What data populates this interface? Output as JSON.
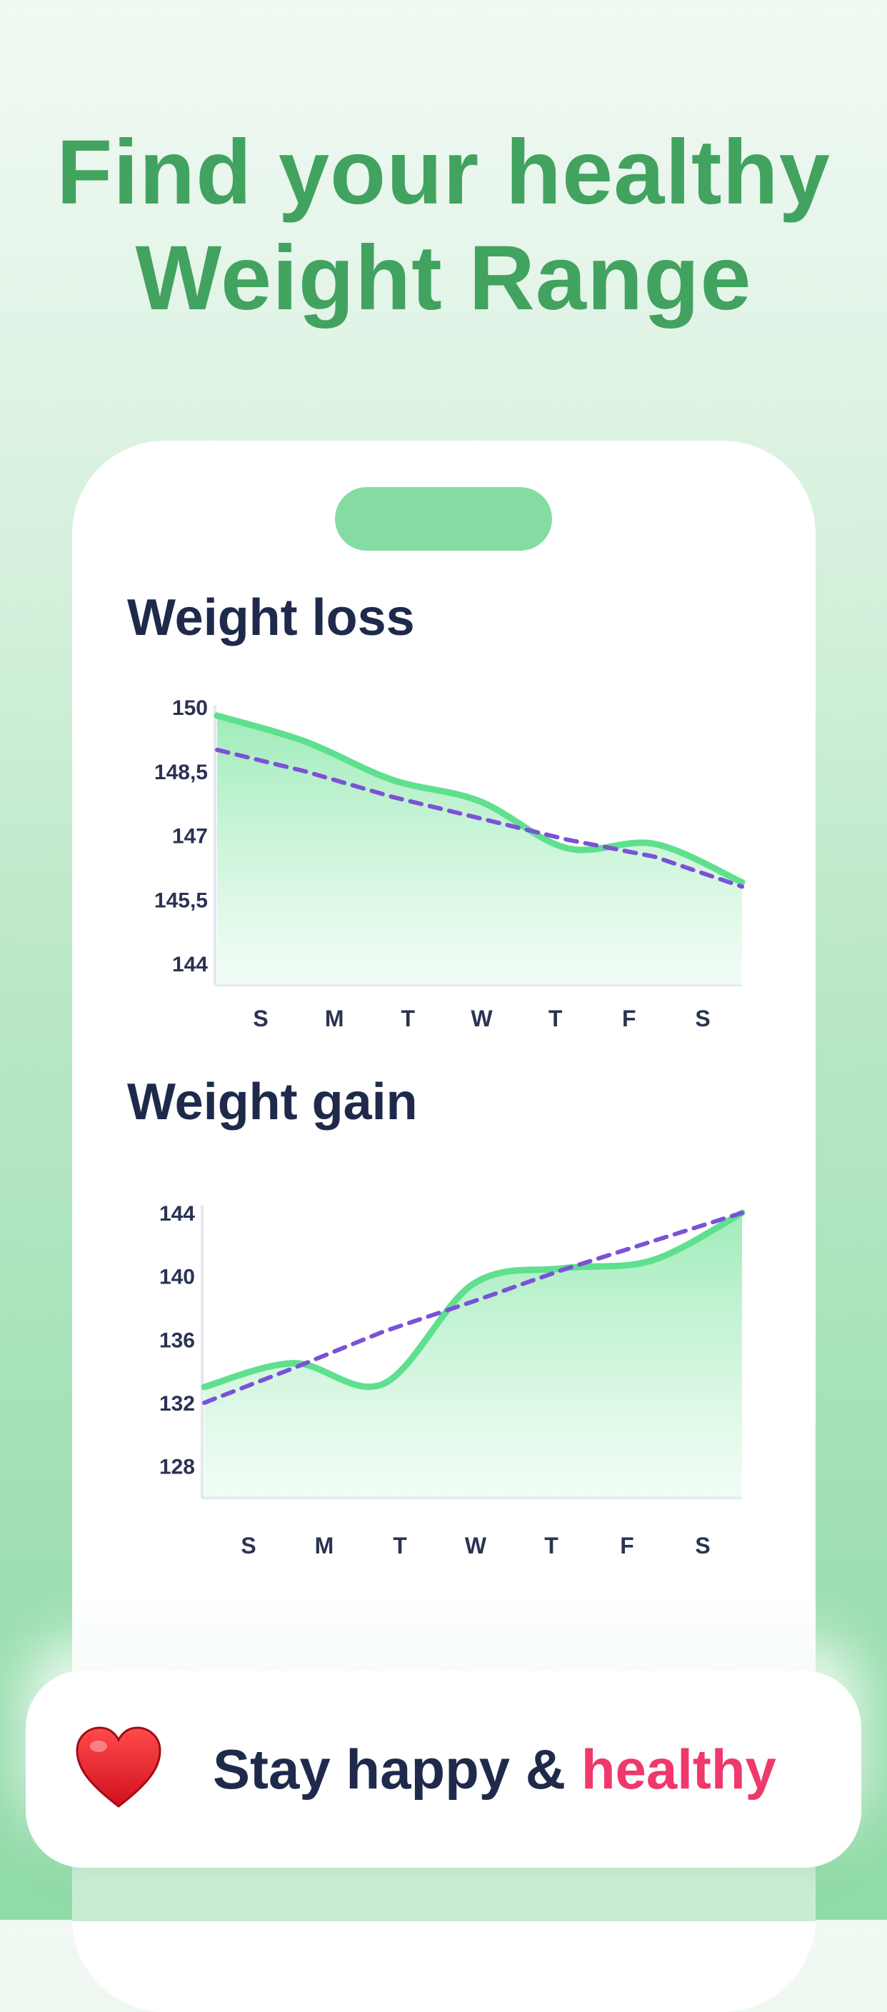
{
  "headline": {
    "line1": "Find your healthy",
    "line2": "Weight Range"
  },
  "colors": {
    "brand_green": "#41a35f",
    "line_green": "#5ee08e",
    "trend_purple": "#7b52d6",
    "accent_pink": "#f0386b",
    "navy": "#1f2a4b",
    "notch": "#84dca2"
  },
  "charts": {
    "loss": {
      "title": "Weight loss"
    },
    "gain": {
      "title": "Weight gain"
    }
  },
  "chart_data": [
    {
      "type": "line",
      "title": "Weight loss",
      "xlabel": "",
      "ylabel": "",
      "categories": [
        "S",
        "M",
        "T",
        "W",
        "T",
        "F",
        "S"
      ],
      "y_ticks": [
        "150",
        "148,5",
        "147",
        "145,5",
        "144"
      ],
      "ylim": [
        143.5,
        150
      ],
      "series": [
        {
          "values": [
            149.8,
            149.2,
            148.3,
            147.8,
            146.7,
            146.8,
            145.9
          ],
          "style": "smooth-area"
        },
        {
          "values": [
            149.0,
            148.5,
            147.9,
            147.4,
            146.9,
            146.5,
            145.8
          ],
          "style": "dashed-trend"
        }
      ],
      "grid": false
    },
    {
      "type": "line",
      "title": "Weight gain",
      "xlabel": "",
      "ylabel": "",
      "categories": [
        "S",
        "M",
        "T",
        "W",
        "T",
        "F",
        "S"
      ],
      "y_ticks": [
        "144",
        "140",
        "136",
        "132",
        "128"
      ],
      "ylim": [
        126,
        144.5
      ],
      "series": [
        {
          "values": [
            133.0,
            134.5,
            133.2,
            139.5,
            140.5,
            141.0,
            144.0
          ],
          "style": "smooth-area"
        },
        {
          "values": [
            132.0,
            134.2,
            136.5,
            138.4,
            140.4,
            142.2,
            144.0
          ],
          "style": "dashed-trend"
        }
      ],
      "grid": false
    }
  ],
  "banner": {
    "icon": "heart-icon",
    "text_main": "Stay happy & ",
    "text_accent": "healthy"
  }
}
